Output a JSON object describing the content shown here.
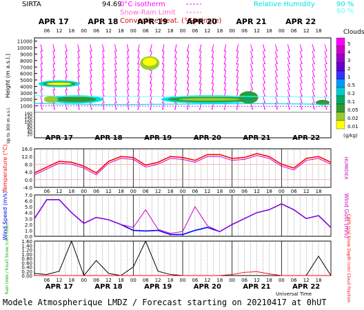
{
  "header": {
    "station": "SIRTA",
    "coord": "94.69",
    "legend_left": [
      "0°C isotherm",
      "Snow-Rain Limit",
      "Convective Heat. (°C/minute)"
    ],
    "legend_right": "Relative Humidity",
    "rh_levels": [
      "90 %",
      "60 %"
    ]
  },
  "footer": "Modele Atmospherique LMDZ / Forecast starting on 20210417 at 0hUT",
  "colors": {
    "frame": "#000000",
    "isotherm": "#ff00ff",
    "snow_rain": "#ff66cc",
    "convective": "#cc0000",
    "rh90": "#00e0e0",
    "rh60": "#66ffff",
    "temperature": "#ff0000",
    "humidex": "#cc00cc",
    "wind_speed": "#0000ff",
    "wind_gust": "#cc00cc",
    "rain": "#000000",
    "cape": "#ff0000",
    "label_green": "#00aa00"
  },
  "chart_data": [
    {
      "type": "heatmap",
      "title": "Clouds",
      "ylabel": "Height (m a.s.l.)",
      "ylabel2": "Up to 300 m a.s.l.",
      "yticks": [
        1000,
        2000,
        3000,
        4000,
        5000,
        6000,
        7000,
        8000,
        9000,
        10000,
        11000
      ],
      "yticks_low": [
        20,
        40,
        60,
        80,
        100,
        120,
        140,
        160
      ],
      "day_labels": [
        "APR 17",
        "APR 18",
        "APR 19",
        "APR 20",
        "APR 21",
        "APR 22"
      ],
      "hour_labels": [
        "06",
        "12",
        "18",
        "00"
      ],
      "cloud_scale_label": "(g/kg)",
      "cloud_scale": [
        "5",
        "4",
        "3",
        "2",
        "1",
        "0.5",
        "0.2",
        "0.1",
        "0.05",
        "0.02",
        "0.01"
      ],
      "cloud_colors": [
        "#ff00ff",
        "#cc00cc",
        "#9900cc",
        "#6600cc",
        "#3333ff",
        "#0099ff",
        "#00cccc",
        "#00aa66",
        "#339933",
        "#99cc33",
        "#ffff00"
      ]
    },
    {
      "type": "line",
      "ylabel": "Temperature (°C)",
      "ylabel2": "HUMIDEX",
      "yticks": [
        -4,
        0,
        4,
        8,
        12,
        16
      ],
      "ylim": [
        -4,
        16
      ],
      "x_hours": [
        0,
        6,
        12,
        18,
        24,
        30,
        36,
        42,
        48,
        54,
        60,
        66,
        72,
        78,
        84,
        90,
        96,
        102,
        108,
        114,
        120,
        126,
        132,
        138,
        144
      ],
      "series": [
        {
          "name": "Temperature",
          "values": [
            3.5,
            6.5,
            9.5,
            9.0,
            7.0,
            3.5,
            9.5,
            12.0,
            11.5,
            7.5,
            9.0,
            12.0,
            11.5,
            10.0,
            13.0,
            13.0,
            11.0,
            11.5,
            13.5,
            12.0,
            8.0,
            6.0,
            11.0,
            12.0,
            9.0
          ]
        },
        {
          "name": "HUMIDEX",
          "values": [
            2.5,
            5.5,
            8.5,
            8.0,
            6.0,
            2.5,
            8.5,
            11.0,
            10.5,
            6.5,
            8.0,
            11.0,
            10.5,
            9.0,
            12.0,
            12.0,
            10.0,
            10.5,
            12.5,
            11.0,
            7.0,
            5.0,
            10.0,
            11.0,
            8.0
          ]
        }
      ]
    },
    {
      "type": "line",
      "ylabel": "Wind Speed (m/s)",
      "ylabel2": "Wind Gust (m/s)",
      "yticks": [
        0.0,
        1.0,
        2.0,
        3.0,
        4.0,
        5.0,
        6.0,
        7.0
      ],
      "ylim": [
        0,
        7
      ],
      "x_hours": [
        0,
        6,
        12,
        18,
        24,
        30,
        36,
        42,
        48,
        54,
        60,
        66,
        72,
        78,
        84,
        90,
        96,
        102,
        108,
        114,
        120,
        126,
        132,
        138,
        144
      ],
      "series": [
        {
          "name": "Wind Speed",
          "values": [
            3.0,
            6.2,
            6.2,
            4.0,
            2.2,
            3.2,
            2.8,
            2.0,
            1.0,
            0.9,
            1.0,
            0.3,
            0.3,
            1.0,
            1.5,
            0.8,
            2.0,
            3.0,
            4.0,
            4.5,
            5.5,
            4.5,
            3.0,
            3.5,
            1.5
          ]
        },
        {
          "name": "Wind Gust",
          "values": [
            3.0,
            6.2,
            6.2,
            4.0,
            2.2,
            3.2,
            2.8,
            2.0,
            1.5,
            4.5,
            1.2,
            0.5,
            0.8,
            5.0,
            1.8,
            0.8,
            2.0,
            3.0,
            4.0,
            4.5,
            5.5,
            4.5,
            3.0,
            3.5,
            1.5
          ]
        }
      ]
    },
    {
      "type": "line",
      "ylabel": "Rain (mm / hour) Snow (cm / hour)",
      "ylabel2": "CAPE (J/g) Snow Depth (cm) Cloud Fraction",
      "yticks": [
        0.0,
        0.2,
        0.4,
        0.6,
        0.8,
        1.0,
        1.2,
        1.4,
        1.6
      ],
      "ylim": [
        0,
        1.6
      ],
      "x_hours": [
        0,
        6,
        12,
        18,
        24,
        30,
        36,
        42,
        48,
        54,
        60,
        66,
        72,
        78,
        84,
        90,
        96,
        102,
        108,
        114,
        120,
        126,
        132,
        138,
        144
      ],
      "series": [
        {
          "name": "Cloud Fraction",
          "values": [
            0.1,
            0.05,
            0.2,
            1.6,
            0.0,
            0.7,
            0.1,
            0.0,
            0.4,
            1.6,
            0.2,
            0.05,
            0.0,
            0.0,
            0.0,
            0.0,
            0.0,
            0.0,
            0.0,
            0.0,
            0.0,
            0.0,
            0.0,
            0.9,
            0.0
          ]
        },
        {
          "name": "CAPE",
          "values": [
            0,
            0,
            0,
            0,
            0,
            0,
            0,
            0,
            0,
            0,
            0,
            0,
            0,
            0,
            0,
            0,
            0.05,
            0.15,
            0.18,
            0.08,
            0,
            0,
            0,
            0,
            0
          ]
        }
      ],
      "xlabel": "Universal Time"
    }
  ]
}
